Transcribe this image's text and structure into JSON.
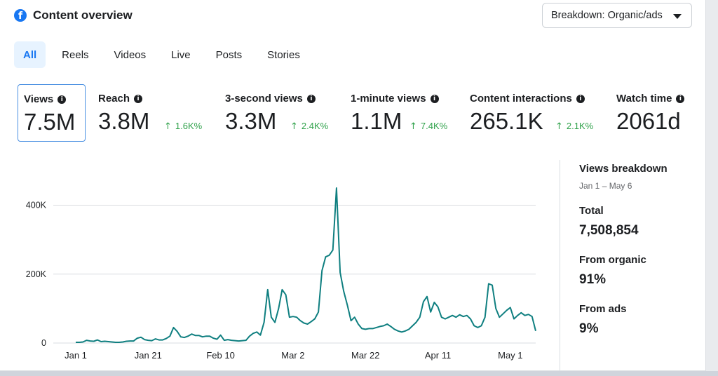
{
  "header": {
    "title": "Content overview",
    "icon": "facebook-icon",
    "brand_color": "#1877f2"
  },
  "breakdown_dropdown": {
    "label": "Breakdown: Organic/ads"
  },
  "tabs": [
    {
      "label": "All",
      "active": true
    },
    {
      "label": "Reels"
    },
    {
      "label": "Videos"
    },
    {
      "label": "Live"
    },
    {
      "label": "Posts"
    },
    {
      "label": "Stories"
    }
  ],
  "metrics": [
    {
      "label": "Views",
      "value": "7.5M",
      "change": "",
      "selected": true
    },
    {
      "label": "Reach",
      "value": "3.8M",
      "change": "1.6K%"
    },
    {
      "label": "3-second views",
      "value": "3.3M",
      "change": "2.4K%"
    },
    {
      "label": "1-minute views",
      "value": "1.1M",
      "change": "7.4K%"
    },
    {
      "label": "Content interactions",
      "value": "265.1K",
      "change": "2.1K%"
    },
    {
      "label": "Watch time",
      "value": "2061d",
      "change": ""
    }
  ],
  "breakdown": {
    "title": "Views breakdown",
    "range": "Jan 1 – May 6",
    "total_label": "Total",
    "total_value": "7,508,854",
    "organic_label": "From organic",
    "organic_value": "91%",
    "ads_label": "From ads",
    "ads_value": "9%"
  },
  "chart_data": {
    "type": "line",
    "line_color": "#0f7f80",
    "grid": true,
    "ylim": [
      0,
      450000
    ],
    "yticks": [
      {
        "value": 0,
        "label": "0"
      },
      {
        "value": 200000,
        "label": "200K"
      },
      {
        "value": 400000,
        "label": "400K"
      }
    ],
    "xticks": [
      {
        "day": 0,
        "label": "Jan 1"
      },
      {
        "day": 20,
        "label": "Jan 21"
      },
      {
        "day": 40,
        "label": "Feb 10"
      },
      {
        "day": 60,
        "label": "Mar 2"
      },
      {
        "day": 80,
        "label": "Mar 22"
      },
      {
        "day": 100,
        "label": "Apr 11"
      },
      {
        "day": 120,
        "label": "May 1"
      }
    ],
    "x_start": "Jan 1",
    "x_end": "May 6",
    "series": [
      {
        "values": [
          2000,
          2000,
          3000,
          8000,
          6000,
          5000,
          9000,
          4000,
          5000,
          4000,
          3000,
          2000,
          2000,
          3000,
          5000,
          6000,
          6000,
          14000,
          17000,
          10000,
          8000,
          7000,
          12000,
          9000,
          9000,
          13000,
          20000,
          45000,
          34000,
          18000,
          16000,
          20000,
          26000,
          22000,
          22000,
          18000,
          20000,
          20000,
          14000,
          11000,
          23000,
          8000,
          10000,
          8000,
          7000,
          6000,
          7000,
          8000,
          20000,
          28000,
          32000,
          23000,
          60000,
          155000,
          75000,
          60000,
          100000,
          155000,
          140000,
          75000,
          77000,
          75000,
          65000,
          58000,
          55000,
          62000,
          70000,
          90000,
          210000,
          250000,
          255000,
          270000,
          450000,
          205000,
          150000,
          110000,
          65000,
          75000,
          55000,
          42000,
          40000,
          42000,
          42000,
          45000,
          48000,
          50000,
          55000,
          48000,
          40000,
          35000,
          32000,
          35000,
          40000,
          50000,
          60000,
          75000,
          120000,
          135000,
          90000,
          118000,
          105000,
          75000,
          70000,
          75000,
          80000,
          75000,
          82000,
          77000,
          80000,
          70000,
          50000,
          45000,
          50000,
          75000,
          172000,
          168000,
          100000,
          75000,
          85000,
          95000,
          103000,
          70000,
          80000,
          88000,
          80000,
          83000,
          77000,
          35000
        ]
      }
    ]
  }
}
